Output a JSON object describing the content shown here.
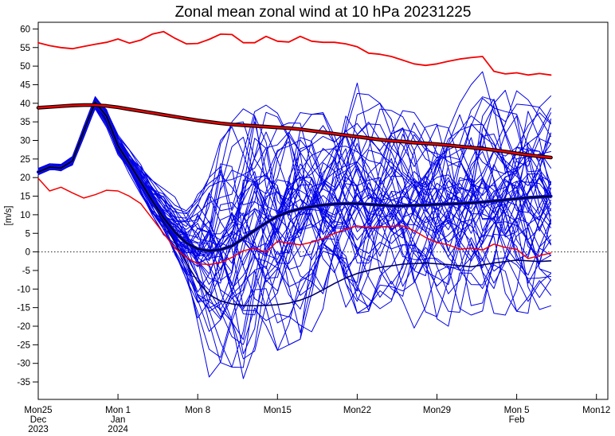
{
  "title": "Zonal mean zonal wind at 10 hPa 20231225",
  "colors": {
    "background": "#ffffff",
    "axis": "#000000",
    "zero_line": "#222222",
    "ensemble_member": "#0000e8",
    "ensemble_mean_core": "#000030",
    "ensemble_mean_halo": "#1414cc",
    "control_forecast": "#000066",
    "climatology_thin": "#f40000",
    "climatology_mean_core": "#e80000",
    "climatology_mean_outline": "#000000"
  },
  "chart_data": {
    "type": "line",
    "title": "Zonal mean zonal wind at 10 hPa 20231225",
    "ylabel": "[m/s]",
    "ylim": [
      -39.7,
      61.8
    ],
    "yticks": [
      -35,
      -30,
      -25,
      -20,
      -15,
      -10,
      -5,
      0,
      5,
      10,
      15,
      20,
      25,
      30,
      35,
      40,
      45,
      50,
      55,
      60
    ],
    "xlim": [
      0,
      50
    ],
    "x_unit": "days from 2023-12-25",
    "xticks": [
      {
        "day": 0,
        "label": "Mon25",
        "sub": [
          "Dec",
          "2023"
        ]
      },
      {
        "day": 7,
        "label": "Mon 1",
        "sub": [
          "Jan",
          "2024"
        ]
      },
      {
        "day": 14,
        "label": "Mon 8",
        "sub": []
      },
      {
        "day": 21,
        "label": "Mon15",
        "sub": []
      },
      {
        "day": 28,
        "label": "Mon22",
        "sub": []
      },
      {
        "day": 35,
        "label": "Mon29",
        "sub": []
      },
      {
        "day": 42,
        "label": "Mon 5",
        "sub": [
          "Feb"
        ]
      },
      {
        "day": 49,
        "label": "Mon12",
        "sub": []
      }
    ],
    "zero_line": true,
    "forecast_length_days": 45,
    "days": [
      0,
      1,
      2,
      3,
      4,
      5,
      6,
      7,
      8,
      9,
      10,
      11,
      12,
      13,
      14,
      15,
      16,
      17,
      18,
      19,
      20,
      21,
      22,
      23,
      24,
      25,
      26,
      27,
      28,
      29,
      30,
      31,
      32,
      33,
      34,
      35,
      36,
      37,
      38,
      39,
      40,
      41,
      42,
      43,
      44,
      45
    ],
    "series": [
      {
        "name": "climatology-max",
        "style": "thin-red",
        "values": [
          56.3,
          55.5,
          55.0,
          54.7,
          55.3,
          55.9,
          56.4,
          57.3,
          56.2,
          57.0,
          58.6,
          59.3,
          57.5,
          56.0,
          56.1,
          57.2,
          58.6,
          58.5,
          56.3,
          56.3,
          58.0,
          56.7,
          56.5,
          58.0,
          56.7,
          56.4,
          56.4,
          56.0,
          55.2,
          53.5,
          53.2,
          52.6,
          51.6,
          50.6,
          50.2,
          50.6,
          51.3,
          51.9,
          52.3,
          52.6,
          48.6,
          47.9,
          48.2,
          47.6,
          48.0,
          47.6
        ]
      },
      {
        "name": "climatology-mean",
        "style": "thick-red-black",
        "values": [
          38.8,
          39.0,
          39.2,
          39.4,
          39.5,
          39.5,
          39.3,
          38.9,
          38.4,
          37.9,
          37.4,
          36.9,
          36.4,
          35.9,
          35.4,
          35.0,
          34.6,
          34.3,
          34.1,
          33.9,
          33.7,
          33.5,
          33.3,
          33.0,
          32.6,
          32.2,
          31.8,
          31.4,
          31.0,
          30.6,
          30.2,
          29.9,
          29.7,
          29.4,
          29.2,
          29.0,
          28.7,
          28.4,
          28.1,
          27.8,
          27.4,
          27.0,
          26.5,
          26.1,
          25.7,
          25.4
        ]
      },
      {
        "name": "climatology-min",
        "style": "thin-red",
        "values": [
          19.8,
          16.4,
          17.4,
          15.9,
          14.5,
          15.4,
          16.6,
          16.4,
          15.0,
          13.0,
          9.0,
          5.0,
          1.0,
          -1.5,
          -3.2,
          -3.4,
          -2.9,
          -1.5,
          0.3,
          1.0,
          -0.1,
          2.9,
          2.3,
          1.9,
          2.6,
          3.6,
          5.0,
          6.1,
          7.0,
          6.5,
          6.7,
          6.9,
          7.0,
          5.7,
          3.9,
          2.5,
          1.9,
          0.7,
          1.0,
          0.5,
          2.1,
          1.2,
          0.7,
          -1.8,
          -1.0,
          -0.3
        ]
      },
      {
        "name": "ensemble-mean",
        "style": "thick-navy",
        "values": [
          21.5,
          22.8,
          22.6,
          24.5,
          32.5,
          40.3,
          36.5,
          28.6,
          23.8,
          18.8,
          13.8,
          9.2,
          5.3,
          2.4,
          0.8,
          0.3,
          0.6,
          1.6,
          3.6,
          5.8,
          7.8,
          9.6,
          10.8,
          11.6,
          12.2,
          12.6,
          12.9,
          13.0,
          13.0,
          12.8,
          12.6,
          12.4,
          12.4,
          12.5,
          12.6,
          12.8,
          12.9,
          13.0,
          13.2,
          13.4,
          13.7,
          14.0,
          14.3,
          14.6,
          14.8,
          15.0
        ]
      },
      {
        "name": "control-forecast",
        "style": "dark-thin",
        "x": [
          0,
          1,
          2,
          3,
          4,
          5,
          6,
          7,
          8,
          9,
          10,
          11,
          12,
          13,
          14,
          15,
          16,
          17,
          18,
          19,
          20,
          21,
          22,
          23,
          24,
          25,
          26,
          27,
          28,
          30,
          32,
          34,
          36,
          38,
          40,
          42,
          44,
          45
        ],
        "values": [
          21.4,
          22.9,
          22.7,
          24.3,
          31.8,
          40.6,
          35.2,
          27.8,
          23.2,
          18.5,
          13.5,
          8.0,
          2.5,
          -3.0,
          -8.0,
          -11.5,
          -13.2,
          -14.0,
          -14.4,
          -14.5,
          -14.4,
          -14.2,
          -13.8,
          -13.0,
          -11.8,
          -10.2,
          -8.5,
          -7.0,
          -5.8,
          -4.2,
          -3.3,
          -3.0,
          -3.4,
          -4.0,
          -3.0,
          -2.2,
          -2.6,
          -2.4
        ]
      }
    ],
    "ensemble": {
      "count": 51,
      "seed": 20231225,
      "mean": [
        21.5,
        22.8,
        22.6,
        24.5,
        32.5,
        40.3,
        36.5,
        28.6,
        23.8,
        18.8,
        13.8,
        9.2,
        5.3,
        2.4,
        0.8,
        0.3,
        0.6,
        1.6,
        3.6,
        5.8,
        7.8,
        9.6,
        10.8,
        11.6,
        12.2,
        12.6,
        12.9,
        13.0,
        13.0,
        12.8,
        12.6,
        12.4,
        12.4,
        12.5,
        12.6,
        12.8,
        12.9,
        13.0,
        13.2,
        13.4,
        13.7,
        14.0,
        14.3,
        14.6,
        14.8,
        15.0
      ],
      "upper": [
        22.5,
        23.8,
        23.6,
        25.8,
        34.0,
        41.8,
        38.5,
        31.5,
        27.5,
        24.0,
        20.0,
        17.0,
        15.0,
        14.0,
        16.5,
        20.0,
        30.0,
        35.0,
        38.5,
        40.0,
        39.5,
        38.5,
        38.0,
        37.5,
        37.0,
        37.5,
        39.0,
        43.0,
        45.5,
        44.0,
        40.0,
        39.0,
        38.0,
        37.5,
        38.0,
        38.5,
        39.0,
        40.0,
        45.0,
        48.5,
        47.0,
        43.5,
        45.0,
        43.0,
        42.5,
        42.0
      ],
      "lower": [
        20.6,
        21.9,
        21.7,
        23.2,
        30.5,
        38.5,
        33.5,
        26.0,
        20.5,
        15.5,
        10.0,
        4.5,
        -1.5,
        -9.0,
        -22.0,
        -36.5,
        -34.0,
        -31.0,
        -35.5,
        -31.0,
        -28.5,
        -26.5,
        -25.0,
        -23.5,
        -21.5,
        -20.0,
        -18.5,
        -17.5,
        -16.5,
        -16.0,
        -15.5,
        -17.0,
        -19.0,
        -20.5,
        -19.0,
        -18.0,
        -20.0,
        -18.5,
        -17.0,
        -17.5,
        -16.5,
        -17.0,
        -16.0,
        -16.5,
        -15.5,
        -14.5
      ]
    }
  }
}
